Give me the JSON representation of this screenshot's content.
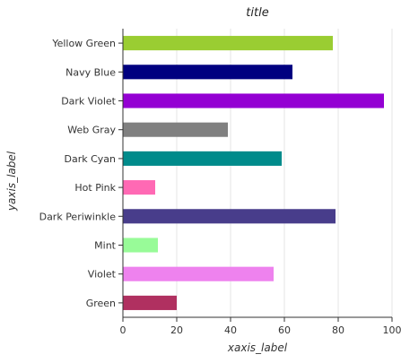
{
  "chart_data": {
    "type": "bar",
    "orientation": "horizontal",
    "title": "title",
    "xlabel": "xaxis_label",
    "ylabel": "yaxis_label",
    "xlim": [
      0,
      100
    ],
    "xticks": [
      0,
      20,
      40,
      60,
      80,
      100
    ],
    "grid": true,
    "categories": [
      "Green",
      "Violet",
      "Mint",
      "Dark Periwinkle",
      "Hot Pink",
      "Dark Cyan",
      "Web Gray",
      "Dark Violet",
      "Navy Blue",
      "Yellow Green"
    ],
    "values": [
      20,
      56,
      13,
      79,
      12,
      59,
      39,
      97,
      63,
      78
    ],
    "colors": [
      "#b03060",
      "#ee82ee",
      "#98fb98",
      "#483d8b",
      "#ff69b4",
      "#008b8b",
      "#808080",
      "#9400d3",
      "#000080",
      "#9acd32"
    ]
  }
}
